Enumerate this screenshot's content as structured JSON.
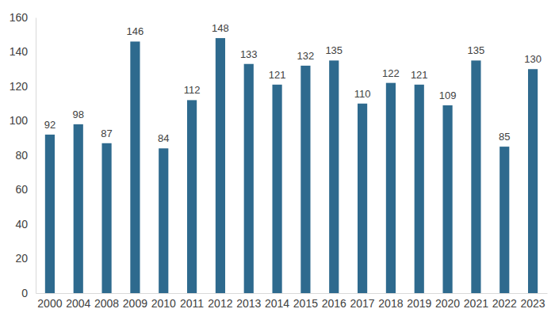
{
  "chart_data": {
    "type": "bar",
    "categories": [
      "2000",
      "2004",
      "2008",
      "2009",
      "2010",
      "2011",
      "2012",
      "2013",
      "2014",
      "2015",
      "2016",
      "2017",
      "2018",
      "2019",
      "2020",
      "2021",
      "2022",
      "2023"
    ],
    "values": [
      92,
      98,
      87,
      146,
      84,
      112,
      148,
      133,
      121,
      132,
      135,
      110,
      122,
      121,
      109,
      135,
      85,
      130
    ],
    "color": "#2e6a8e",
    "ylim": [
      0,
      160
    ],
    "yticks": [
      0,
      20,
      40,
      60,
      80,
      100,
      120,
      140,
      160
    ],
    "grid": false,
    "data_labels": true
  }
}
